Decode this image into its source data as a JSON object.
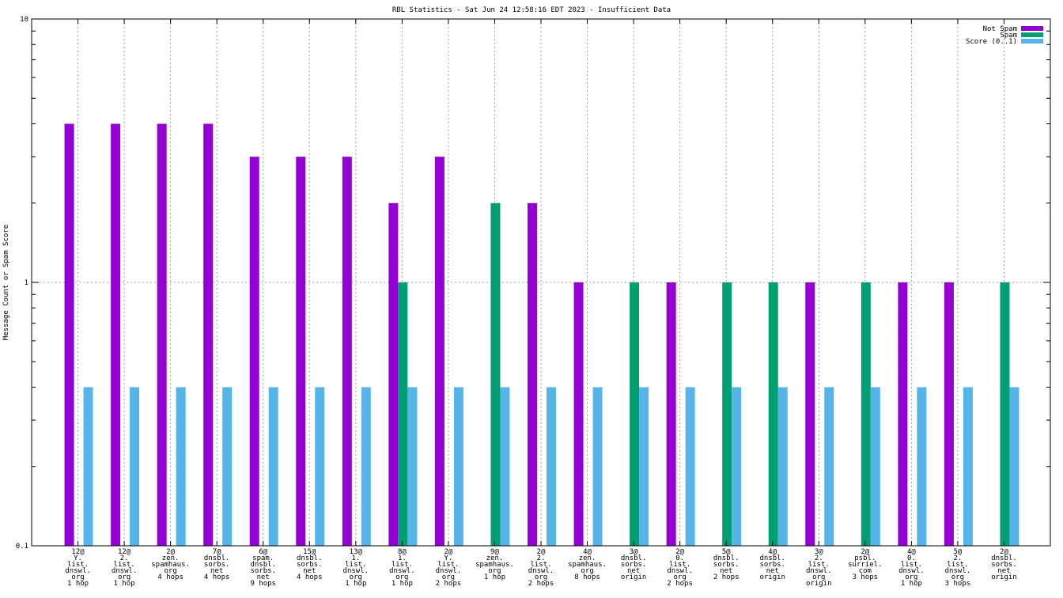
{
  "chart_data": {
    "type": "bar",
    "title": "RBL Statistics - Sat Jun 24 12:58:16 EDT 2023 - Insufficient Data",
    "xlabel": "",
    "ylabel": "Message Count or Spam Score",
    "yscale": "log",
    "ylim": [
      0.1,
      10
    ],
    "yticks": [
      {
        "v": 0.1,
        "label": "0.1"
      },
      {
        "v": 1,
        "label": "1"
      },
      {
        "v": 10,
        "label": "10"
      }
    ],
    "grid": true,
    "legend_position": "top-right",
    "categories": [
      [
        "12@",
        "Y.",
        "list.",
        "dnswl.",
        "org",
        "1 hop"
      ],
      [
        "12@",
        "2.",
        "list.",
        "dnswl.",
        "org",
        "1 hop"
      ],
      [
        "2@",
        "zen.",
        "spamhaus.",
        "org",
        "4 hops"
      ],
      [
        "7@",
        "dnsbl.",
        "sorbs.",
        "net",
        "4 hops"
      ],
      [
        "6@",
        "spam.",
        "dnsbl.",
        "sorbs.",
        "net",
        "9 hops"
      ],
      [
        "15@",
        "dnsbl.",
        "sorbs.",
        "net",
        "4 hops"
      ],
      [
        "13@",
        "1.",
        "list.",
        "dnswl.",
        "org",
        "1 hop"
      ],
      [
        "8@",
        "1.",
        "list.",
        "dnswl.",
        "org",
        "1 hop"
      ],
      [
        "2@",
        "Y.",
        "list.",
        "dnswl.",
        "org",
        "2 hops"
      ],
      [
        "9@",
        "zen.",
        "spamhaus.",
        "org",
        "1 hop"
      ],
      [
        "2@",
        "2.",
        "list.",
        "dnswl.",
        "org",
        "2 hops"
      ],
      [
        "4@",
        "zen.",
        "spamhaus.",
        "org",
        "8 hops"
      ],
      [
        "3@",
        "dnsbl.",
        "sorbs.",
        "net",
        "origin"
      ],
      [
        "2@",
        "0.",
        "list.",
        "dnswl.",
        "org",
        "2 hops"
      ],
      [
        "5@",
        "dnsbl.",
        "sorbs.",
        "net",
        "2 hops"
      ],
      [
        "4@",
        "dnsbl.",
        "sorbs.",
        "net",
        "origin"
      ],
      [
        "3@",
        "2.",
        "list.",
        "dnswl.",
        "org",
        "origin"
      ],
      [
        "2@",
        "psbl.",
        "surriel.",
        "com",
        "3 hops"
      ],
      [
        "4@",
        "0.",
        "list.",
        "dnswl.",
        "org",
        "1 hop"
      ],
      [
        "5@",
        "2.",
        "list.",
        "dnswl.",
        "org",
        "3 hops"
      ],
      [
        "2@",
        "dnsbl.",
        "sorbs.",
        "net",
        "origin"
      ]
    ],
    "series": [
      {
        "name": "Not Spam",
        "color": "#9400d3",
        "values": [
          4,
          4,
          4,
          4,
          3,
          3,
          3,
          2,
          3,
          0,
          2,
          1,
          0,
          1,
          0,
          0,
          1,
          0,
          1,
          1,
          0
        ]
      },
      {
        "name": "Spam",
        "color": "#009e73",
        "values": [
          0,
          0,
          0,
          0,
          0,
          0,
          0,
          1,
          0,
          2,
          0,
          0,
          1,
          0,
          1,
          1,
          0,
          1,
          0,
          0,
          1
        ]
      },
      {
        "name": "Score (0..1)",
        "color": "#56b4e9",
        "values": [
          0.4,
          0.4,
          0.4,
          0.4,
          0.4,
          0.4,
          0.4,
          0.4,
          0.4,
          0.4,
          0.4,
          0.4,
          0.4,
          0.4,
          0.4,
          0.4,
          0.4,
          0.4,
          0.4,
          0.4,
          0.4
        ]
      }
    ]
  }
}
